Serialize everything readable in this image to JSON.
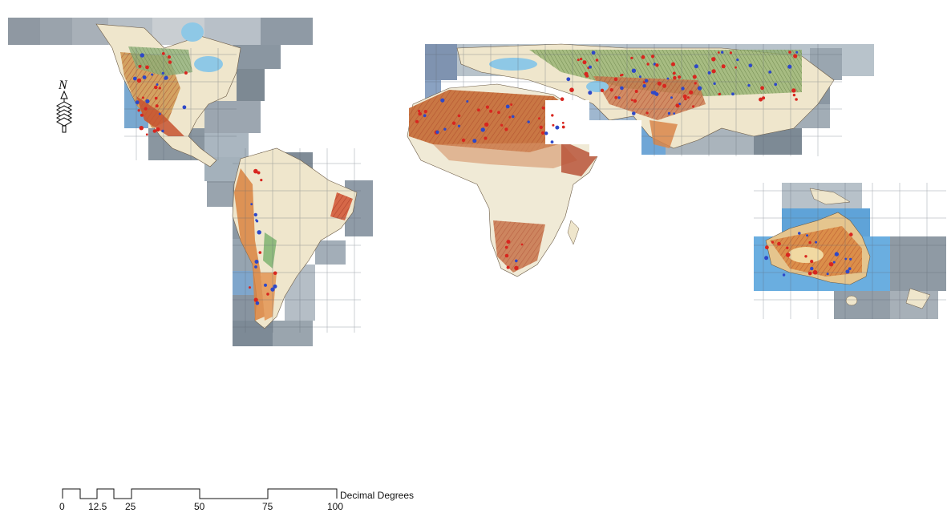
{
  "map": {
    "kind": "mosaic of scanned desert atlas sheets on grey imagery tiles",
    "regions": [
      "north-america",
      "south-america",
      "africa-eurasia",
      "australia"
    ],
    "colors": {
      "tile_grey": "#8e9aa6",
      "tile_blue": "#6aa8d8",
      "land_cream": "#f1e9d6",
      "desert_orange": "#d9824a",
      "desert_brown": "#b8643a",
      "steppe_green": "#9bb07a",
      "water_blue": "#9fd2ea",
      "hatch_red": "#c8322a",
      "dot_red": "#d8261f",
      "dot_blue": "#2e48c8"
    }
  },
  "north_arrow": {
    "letter": "N",
    "icon": "north-arrow-icon"
  },
  "scale_bar": {
    "unit": "Decimal Degrees",
    "ticks": [
      "0",
      "12.5",
      "25",
      "50",
      "75",
      "100"
    ]
  }
}
